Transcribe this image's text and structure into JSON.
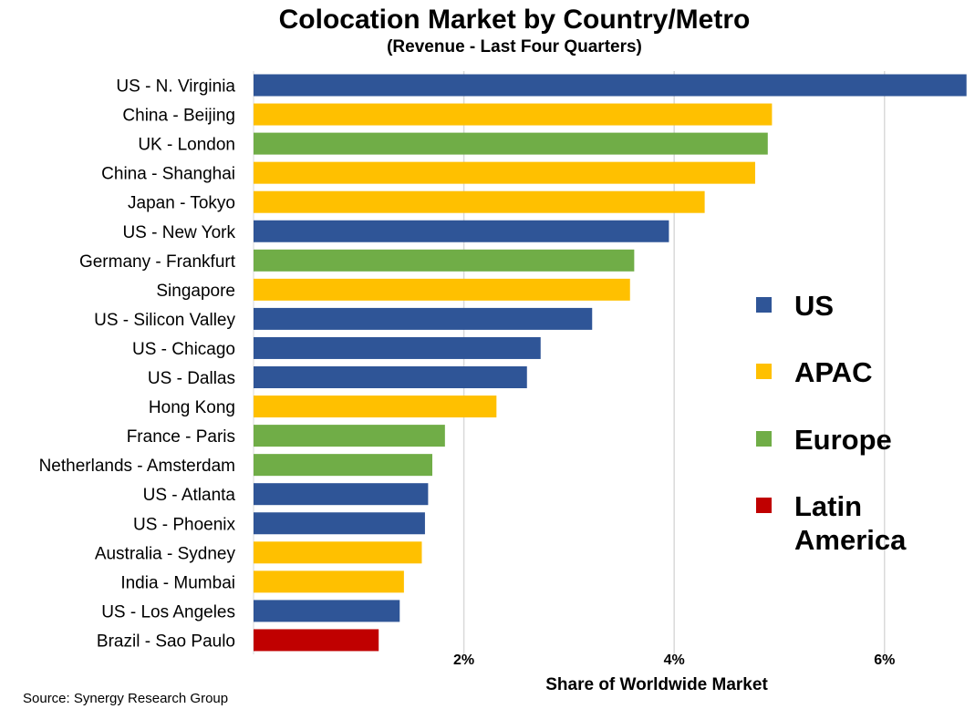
{
  "chart_data": {
    "type": "bar",
    "orientation": "horizontal",
    "title": "Colocation Market by Country/Metro",
    "subtitle": "(Revenue - Last Four Quarters)",
    "xlabel": "Share of Worldwide Market",
    "ylabel": "",
    "xlim": [
      0,
      6.8
    ],
    "x_ticks": [
      2,
      4,
      6
    ],
    "x_tick_labels": [
      "2%",
      "4%",
      "6%"
    ],
    "grid": "vertical",
    "legend_position": "right",
    "source": "Source: Synergy Research Group",
    "legend": [
      {
        "name": "US",
        "color": "#2F5597"
      },
      {
        "name": "APAC",
        "color": "#FFC000"
      },
      {
        "name": "Europe",
        "color": "#70AD47"
      },
      {
        "name": "Latin America",
        "color": "#C00000"
      }
    ],
    "categories": [
      "US - N. Virginia",
      "China - Beijing",
      "UK - London",
      "China - Shanghai",
      "Japan - Tokyo",
      "US - New York",
      "Germany - Frankfurt",
      "Singapore",
      "US - Silicon Valley",
      "US - Chicago",
      "US - Dallas",
      "Hong Kong",
      "France - Paris",
      "Netherlands - Amsterdam",
      "US - Atlanta",
      "US - Phoenix",
      "Australia - Sydney",
      "India - Mumbai",
      "US - Los Angeles",
      "Brazil - Sao Paulo"
    ],
    "values": [
      6.78,
      4.93,
      4.89,
      4.77,
      4.29,
      3.95,
      3.62,
      3.58,
      3.22,
      2.73,
      2.6,
      2.31,
      1.82,
      1.7,
      1.66,
      1.63,
      1.6,
      1.43,
      1.39,
      1.19
    ],
    "regions": [
      "US",
      "APAC",
      "Europe",
      "APAC",
      "APAC",
      "US",
      "Europe",
      "APAC",
      "US",
      "US",
      "US",
      "APAC",
      "Europe",
      "Europe",
      "US",
      "US",
      "APAC",
      "APAC",
      "US",
      "Latin America"
    ]
  }
}
